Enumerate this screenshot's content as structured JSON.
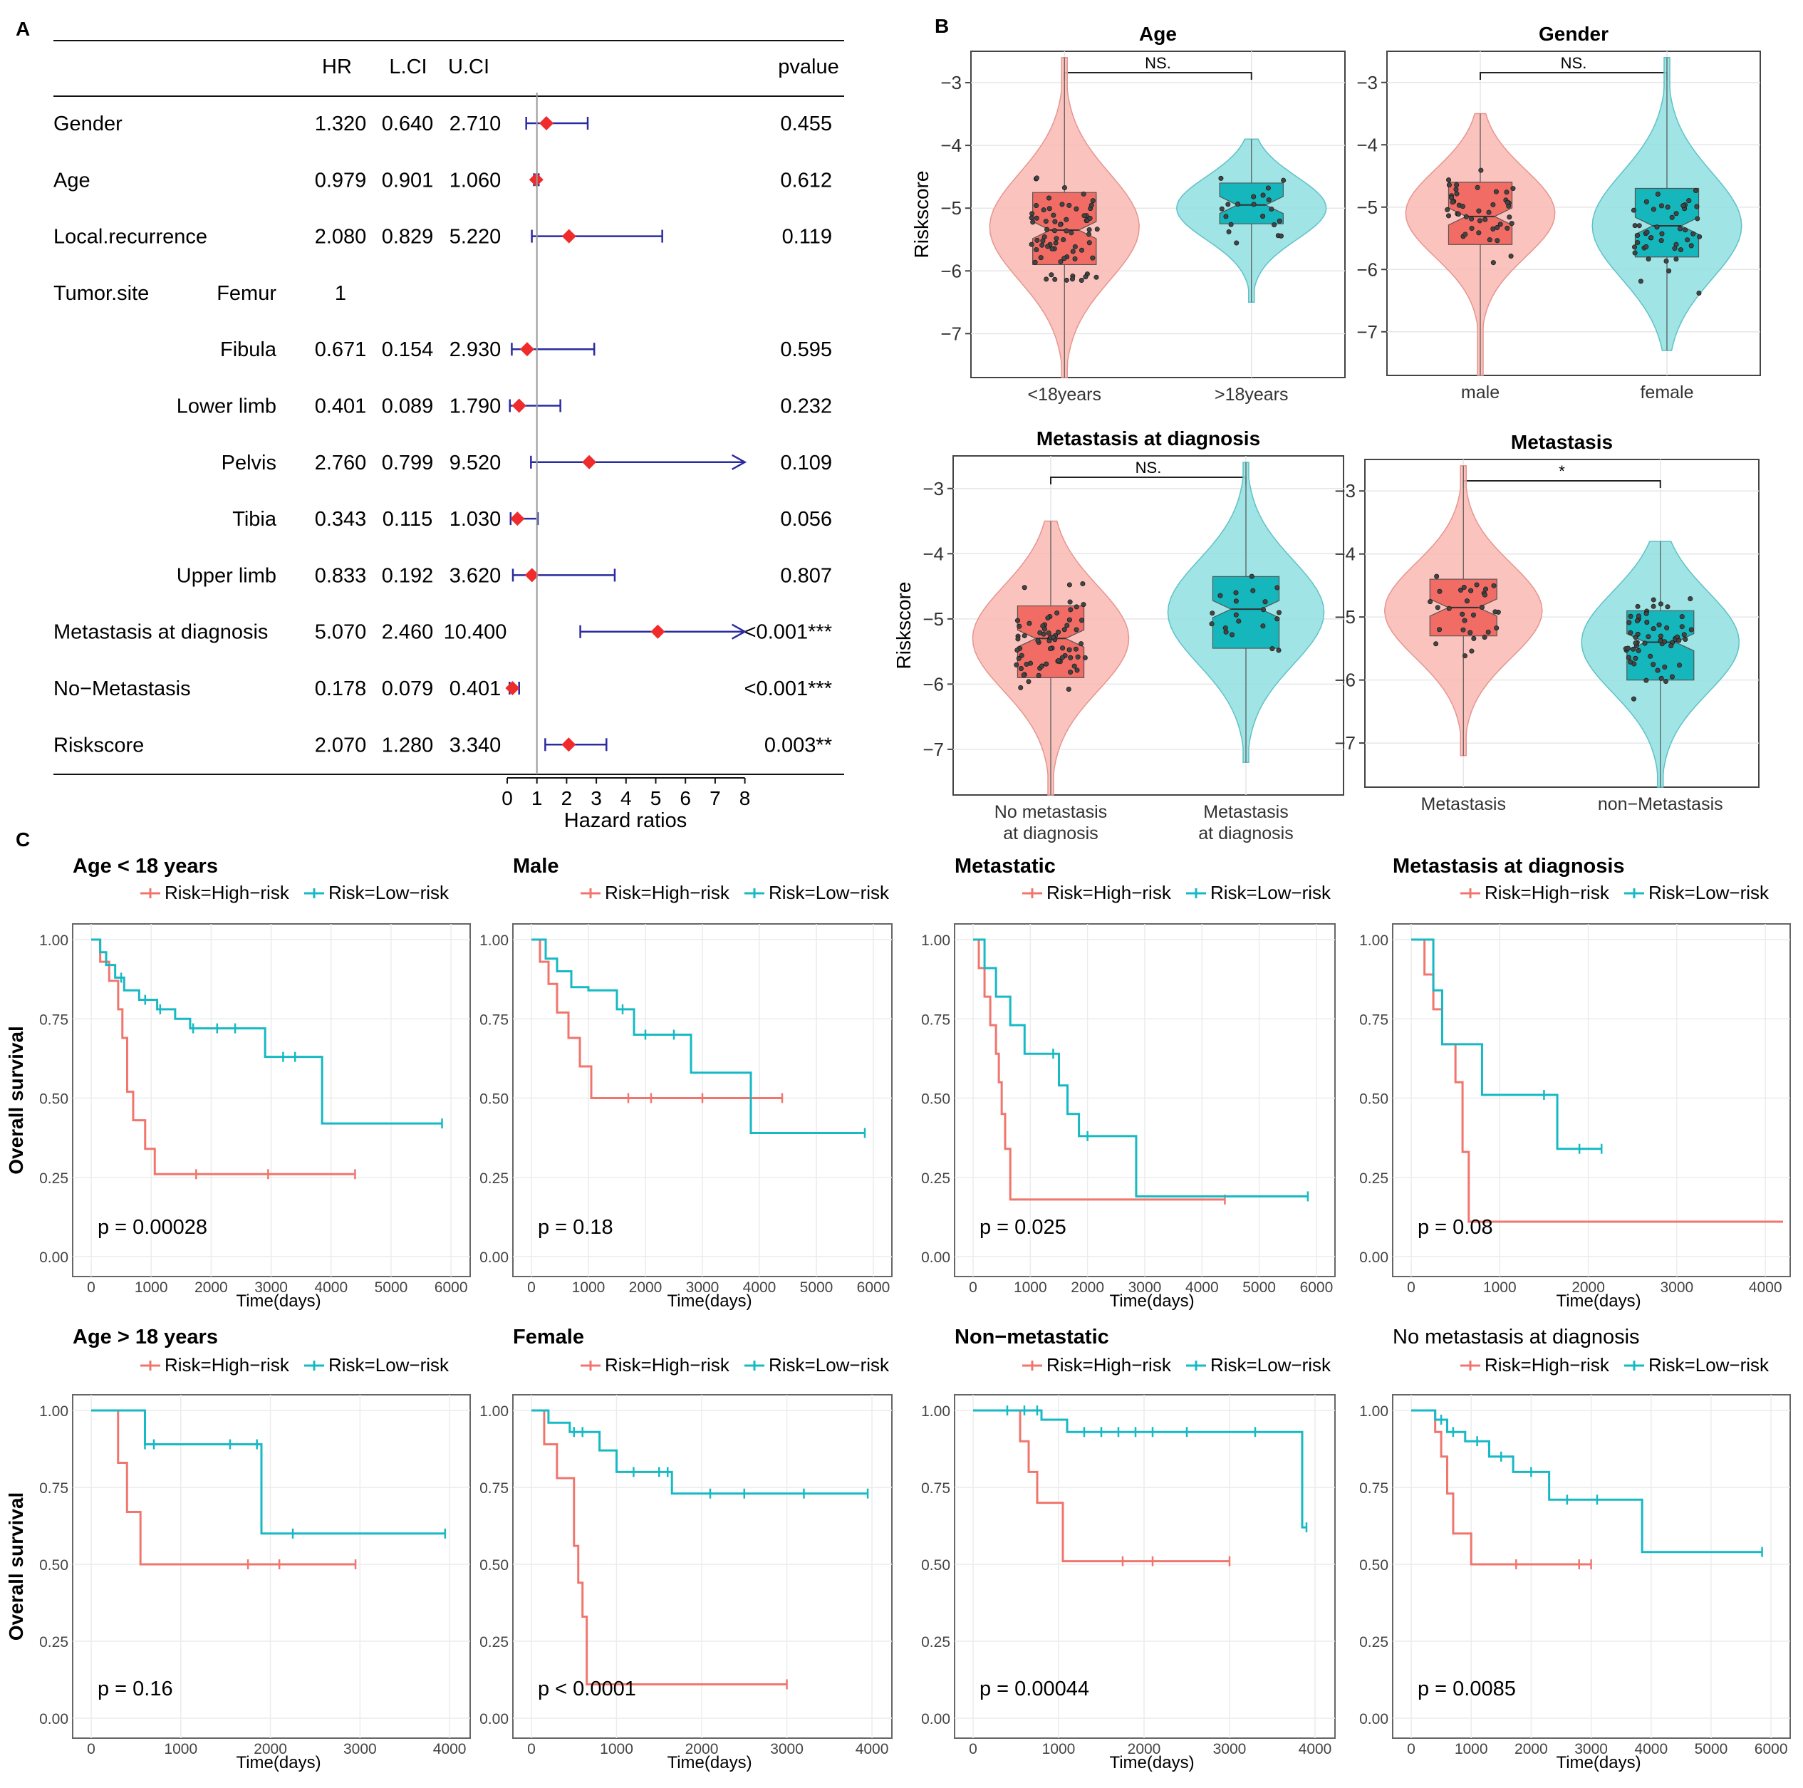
{
  "panel_labels": {
    "a": "A",
    "b": "B",
    "c": "C"
  },
  "forest": {
    "columns": {
      "hr": "HR",
      "lci": "L.CI",
      "uci": "U.CI",
      "pvalue": "pvalue"
    },
    "rows": [
      {
        "label": "Gender",
        "sub": "",
        "hr_text": "1.320",
        "lci_text": "0.640",
        "uci_text": "2.710",
        "p": "0.455",
        "hr": 1.32,
        "lci": 0.64,
        "uci": 2.71
      },
      {
        "label": "Age",
        "sub": "",
        "hr_text": "0.979",
        "lci_text": "0.901",
        "uci_text": "1.060",
        "p": "0.612",
        "hr": 0.979,
        "lci": 0.901,
        "uci": 1.06
      },
      {
        "label": "Local.recurrence",
        "sub": "",
        "hr_text": "2.080",
        "lci_text": "0.829",
        "uci_text": "5.220",
        "p": "0.119",
        "hr": 2.08,
        "lci": 0.829,
        "uci": 5.22
      },
      {
        "label": "Tumor.site",
        "sub": "Femur",
        "hr_text": "1",
        "lci_text": "",
        "uci_text": "",
        "p": "",
        "hr": null,
        "lci": null,
        "uci": null
      },
      {
        "label": "",
        "sub": "Fibula",
        "hr_text": "0.671",
        "lci_text": "0.154",
        "uci_text": "2.930",
        "p": "0.595",
        "hr": 0.671,
        "lci": 0.154,
        "uci": 2.93
      },
      {
        "label": "",
        "sub": "Lower limb",
        "hr_text": "0.401",
        "lci_text": "0.089",
        "uci_text": "1.790",
        "p": "0.232",
        "hr": 0.401,
        "lci": 0.089,
        "uci": 1.79
      },
      {
        "label": "",
        "sub": "Pelvis",
        "hr_text": "2.760",
        "lci_text": "0.799",
        "uci_text": "9.520",
        "p": "0.109",
        "hr": 2.76,
        "lci": 0.799,
        "uci": 9.52
      },
      {
        "label": "",
        "sub": "Tibia",
        "hr_text": "0.343",
        "lci_text": "0.115",
        "uci_text": "1.030",
        "p": "0.056",
        "hr": 0.343,
        "lci": 0.115,
        "uci": 1.03
      },
      {
        "label": "",
        "sub": "Upper limb",
        "hr_text": "0.833",
        "lci_text": "0.192",
        "uci_text": "3.620",
        "p": "0.807",
        "hr": 0.833,
        "lci": 0.192,
        "uci": 3.62
      },
      {
        "label": "Metastasis at diagnosis",
        "sub": "",
        "hr_text": "5.070",
        "lci_text": "2.460",
        "uci_text": "10.400",
        "p": "<0.001***",
        "hr": 5.07,
        "lci": 2.46,
        "uci": 10.4
      },
      {
        "label": "No−Metastasis",
        "sub": "",
        "hr_text": "0.178",
        "lci_text": "0.079",
        "uci_text": "0.401",
        "p": "<0.001***",
        "hr": 0.178,
        "lci": 0.079,
        "uci": 0.401
      },
      {
        "label": "Riskscore",
        "sub": "",
        "hr_text": "2.070",
        "lci_text": "1.280",
        "uci_text": "3.340",
        "p": "0.003**",
        "hr": 2.07,
        "lci": 1.28,
        "uci": 3.34
      }
    ],
    "xticks": [
      0,
      1,
      2,
      3,
      4,
      5,
      6,
      7,
      8
    ],
    "xlabel": "Hazard ratios",
    "ref_line": 1,
    "colors": {
      "point": "#ef2b2b",
      "ci": "#2b2ba0"
    }
  },
  "violins": [
    {
      "title": "Age",
      "sig": "NS.",
      "ylabel": "Riskscore",
      "groups": [
        "<18years",
        ">18years"
      ],
      "n": [
        70,
        20
      ],
      "centers": [
        -5.3,
        -5.0
      ],
      "sds": [
        0.85,
        0.5
      ],
      "ranges": [
        [
          -7.7,
          -2.6
        ],
        [
          -6.5,
          -3.9
        ]
      ],
      "q1": [
        -5.9,
        -5.25
      ],
      "q3": [
        -4.75,
        -4.6
      ],
      "median": [
        -5.35,
        -4.95
      ]
    },
    {
      "title": "Gender",
      "sig": "NS.",
      "ylabel": "",
      "groups": [
        "male",
        "female"
      ],
      "n": [
        45,
        45
      ],
      "centers": [
        -5.1,
        -5.3
      ],
      "sds": [
        0.7,
        0.85
      ],
      "ranges": [
        [
          -7.7,
          -3.5
        ],
        [
          -7.3,
          -2.6
        ]
      ],
      "q1": [
        -5.6,
        -5.8
      ],
      "q3": [
        -4.6,
        -4.7
      ],
      "median": [
        -5.15,
        -5.3
      ]
    },
    {
      "title": "Metastasis at diagnosis",
      "sig": "NS.",
      "ylabel": "Riskscore",
      "groups": [
        "No metastasis\nat diagnosis",
        "Metastasis\nat diagnosis"
      ],
      "n": [
        70,
        20
      ],
      "centers": [
        -5.3,
        -4.9
      ],
      "sds": [
        0.8,
        0.8
      ],
      "ranges": [
        [
          -7.7,
          -3.5
        ],
        [
          -7.2,
          -2.6
        ]
      ],
      "q1": [
        -5.9,
        -5.45
      ],
      "q3": [
        -4.8,
        -4.35
      ],
      "median": [
        -5.3,
        -4.85
      ]
    },
    {
      "title": "Metastasis",
      "sig": "*",
      "ylabel": "",
      "groups": [
        "Metastasis",
        "non−Metastasis"
      ],
      "n": [
        30,
        60
      ],
      "centers": [
        -4.9,
        -5.4
      ],
      "sds": [
        0.75,
        0.8
      ],
      "ranges": [
        [
          -7.2,
          -2.6
        ],
        [
          -7.7,
          -3.8
        ]
      ],
      "q1": [
        -5.3,
        -6.0
      ],
      "q3": [
        -4.4,
        -4.9
      ],
      "median": [
        -4.85,
        -5.4
      ]
    }
  ],
  "violin_axis": {
    "yticks": [
      -3,
      -4,
      -5,
      -6,
      -7
    ],
    "ytick_labels": [
      "−3",
      "−4",
      "−5",
      "−6",
      "−7"
    ],
    "ylim": [
      -7.7,
      -2.5
    ]
  },
  "km_common": {
    "legend_high": "Risk=High−risk",
    "legend_low": "Risk=Low−risk",
    "ylabel": "Overall survival",
    "xlabel": "Time(days)",
    "yticks": [
      "0.00",
      "0.25",
      "0.50",
      "0.75",
      "1.00"
    ],
    "high_color": "#f0766d",
    "low_color": "#16b9c4"
  },
  "chart_data": [
    {
      "type": "line",
      "title": "Age < 18 years",
      "pvalue": "p = 0.00028",
      "xticks": [
        0,
        1000,
        2000,
        3000,
        4000,
        5000,
        6000
      ],
      "xmax": 6200,
      "ylim": [
        0,
        1
      ],
      "series": [
        {
          "name": "Risk=High−risk",
          "x": [
            0,
            150,
            300,
            450,
            520,
            600,
            700,
            900,
            1000,
            1060,
            4400
          ],
          "y": [
            1,
            0.93,
            0.87,
            0.78,
            0.69,
            0.52,
            0.43,
            0.34,
            0.34,
            0.26,
            0.26
          ],
          "censor": [
            1750,
            2950,
            4400
          ]
        },
        {
          "name": "Risk=Low−risk",
          "x": [
            0,
            150,
            250,
            400,
            550,
            800,
            1100,
            1400,
            1650,
            2900,
            3850,
            5850
          ],
          "y": [
            1,
            0.96,
            0.92,
            0.88,
            0.84,
            0.81,
            0.78,
            0.75,
            0.72,
            0.63,
            0.42,
            0.42
          ],
          "censor": [
            500,
            900,
            1150,
            1700,
            2100,
            2400,
            3200,
            3400,
            5850
          ]
        }
      ]
    },
    {
      "type": "line",
      "title": "Male",
      "pvalue": "p = 0.18",
      "xticks": [
        0,
        1000,
        2000,
        3000,
        4000,
        5000,
        6000
      ],
      "xmax": 6200,
      "ylim": [
        0,
        1
      ],
      "series": [
        {
          "name": "Risk=High−risk",
          "x": [
            0,
            150,
            300,
            450,
            650,
            850,
            1050,
            4400
          ],
          "y": [
            1,
            0.93,
            0.86,
            0.77,
            0.69,
            0.6,
            0.5,
            0.5
          ],
          "censor": [
            1700,
            2100,
            3000,
            4400
          ]
        },
        {
          "name": "Risk=Low−risk",
          "x": [
            0,
            250,
            450,
            700,
            1000,
            1500,
            1800,
            2800,
            3850,
            5850
          ],
          "y": [
            1,
            0.94,
            0.9,
            0.85,
            0.84,
            0.78,
            0.7,
            0.58,
            0.39,
            0.39
          ],
          "censor": [
            1600,
            2000,
            2500,
            5850
          ]
        }
      ]
    },
    {
      "type": "line",
      "title": "Metastatic",
      "pvalue": "p = 0.025",
      "xticks": [
        0,
        1000,
        2000,
        3000,
        4000,
        5000,
        6000
      ],
      "xmax": 6200,
      "ylim": [
        0,
        1
      ],
      "series": [
        {
          "name": "Risk=High−risk",
          "x": [
            0,
            100,
            200,
            300,
            400,
            450,
            500,
            560,
            650,
            4400
          ],
          "y": [
            1,
            0.91,
            0.82,
            0.73,
            0.64,
            0.55,
            0.45,
            0.34,
            0.18,
            0.18
          ],
          "censor": [
            4400
          ]
        },
        {
          "name": "Risk=Low−risk",
          "x": [
            0,
            200,
            400,
            650,
            900,
            1500,
            1650,
            1850,
            2850,
            5850
          ],
          "y": [
            1,
            0.91,
            0.82,
            0.73,
            0.64,
            0.54,
            0.45,
            0.38,
            0.19,
            0.19
          ],
          "censor": [
            1400,
            2000,
            5850
          ]
        }
      ]
    },
    {
      "type": "line",
      "title": "Metastasis at diagnosis",
      "pvalue": "p = 0.08",
      "xticks": [
        0,
        1000,
        2000,
        3000,
        4000
      ],
      "xmax": 4200,
      "ylim": [
        0,
        1
      ],
      "series": [
        {
          "name": "Risk=High−risk",
          "x": [
            0,
            150,
            250,
            350,
            500,
            580,
            650,
            4200
          ],
          "y": [
            1,
            0.89,
            0.78,
            0.67,
            0.55,
            0.33,
            0.11,
            0.11
          ],
          "censor": []
        },
        {
          "name": "Risk=Low−risk",
          "x": [
            0,
            250,
            350,
            800,
            1650,
            2150
          ],
          "y": [
            1,
            0.84,
            0.67,
            0.51,
            0.34,
            0.34
          ],
          "censor": [
            1500,
            1900,
            2150
          ]
        }
      ]
    },
    {
      "type": "line",
      "title": "Age > 18 years",
      "pvalue": "p = 0.16",
      "xticks": [
        0,
        1000,
        2000,
        3000,
        4000
      ],
      "xmax": 4150,
      "ylim": [
        0,
        1
      ],
      "series": [
        {
          "name": "Risk=High−risk",
          "x": [
            0,
            300,
            400,
            550,
            2950
          ],
          "y": [
            1,
            0.83,
            0.67,
            0.5,
            0.5
          ],
          "censor": [
            1750,
            2100,
            2950
          ]
        },
        {
          "name": "Risk=Low−risk",
          "x": [
            0,
            600,
            1900,
            3950
          ],
          "y": [
            1,
            0.89,
            0.6,
            0.6
          ],
          "censor": [
            600,
            700,
            1550,
            1850,
            2250,
            3950
          ]
        }
      ]
    },
    {
      "type": "line",
      "title": "Female",
      "pvalue": "p < 0.0001",
      "xticks": [
        0,
        1000,
        2000,
        3000,
        4000
      ],
      "xmax": 4150,
      "ylim": [
        0,
        1
      ],
      "series": [
        {
          "name": "Risk=High−risk",
          "x": [
            0,
            150,
            300,
            500,
            550,
            600,
            650,
            3000
          ],
          "y": [
            1,
            0.89,
            0.78,
            0.56,
            0.44,
            0.33,
            0.11,
            0.11
          ],
          "censor": [
            3000
          ]
        },
        {
          "name": "Risk=Low−risk",
          "x": [
            0,
            200,
            450,
            800,
            1000,
            1650,
            3950
          ],
          "y": [
            1,
            0.96,
            0.93,
            0.87,
            0.8,
            0.73,
            0.73
          ],
          "censor": [
            500,
            600,
            1200,
            1500,
            1600,
            2100,
            2500,
            3200,
            3950
          ]
        }
      ]
    },
    {
      "type": "line",
      "title": "Non−metastatic",
      "pvalue": "p = 0.00044",
      "xticks": [
        0,
        1000,
        2000,
        3000,
        4000
      ],
      "xmax": 4150,
      "ylim": [
        0,
        1
      ],
      "series": [
        {
          "name": "Risk=High−risk",
          "x": [
            0,
            550,
            650,
            750,
            1050,
            3000
          ],
          "y": [
            1,
            0.9,
            0.8,
            0.7,
            0.51,
            0.51
          ],
          "censor": [
            1750,
            2100,
            3000
          ]
        },
        {
          "name": "Risk=Low−risk",
          "x": [
            0,
            800,
            1100,
            3850,
            3900
          ],
          "y": [
            1,
            0.97,
            0.93,
            0.62,
            0.62
          ],
          "censor": [
            400,
            600,
            750,
            1300,
            1500,
            1700,
            1900,
            2100,
            2500,
            3300,
            3900
          ]
        }
      ]
    },
    {
      "type": "line",
      "title": "No metastasis at diagnosis",
      "pvalue": "p = 0.0085",
      "xticks": [
        0,
        1000,
        2000,
        3000,
        4000,
        5000,
        6000
      ],
      "xmax": 6200,
      "ylim": [
        0,
        1
      ],
      "series": [
        {
          "name": "Risk=High−risk",
          "x": [
            0,
            400,
            500,
            600,
            700,
            1000,
            3000
          ],
          "y": [
            1,
            0.93,
            0.85,
            0.73,
            0.6,
            0.5,
            0.5
          ],
          "censor": [
            1750,
            2800,
            3000
          ]
        },
        {
          "name": "Risk=Low−risk",
          "x": [
            0,
            400,
            600,
            900,
            1300,
            1700,
            2300,
            3850,
            5850
          ],
          "y": [
            1,
            0.97,
            0.93,
            0.9,
            0.85,
            0.8,
            0.71,
            0.54,
            0.54
          ],
          "censor": [
            500,
            700,
            1100,
            1500,
            2000,
            2600,
            3100,
            5850
          ]
        }
      ]
    }
  ]
}
